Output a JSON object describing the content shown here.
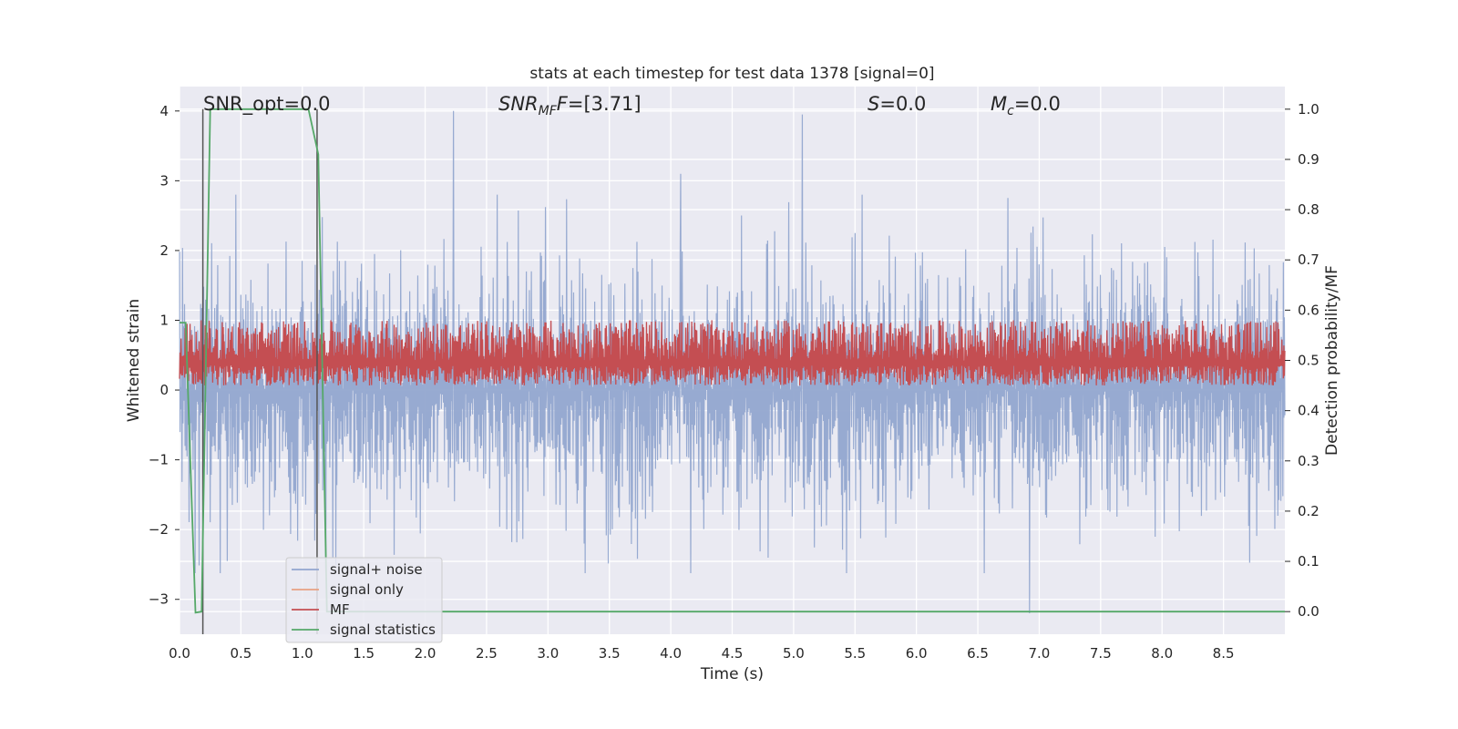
{
  "chart_data": {
    "type": "line",
    "title": "stats at each timestep for test data 1378 [signal=0]",
    "xlabel": "Time (s)",
    "ylabel": "Whitened strain",
    "y2label": "Detection probability/MF",
    "xlim": [
      0.0,
      9.0
    ],
    "ylim": [
      -3.5,
      4.35
    ],
    "y2lim": [
      -0.045,
      1.045
    ],
    "xticks": [
      "0.0",
      "0.5",
      "1.0",
      "1.5",
      "2.0",
      "2.5",
      "3.0",
      "3.5",
      "4.0",
      "4.5",
      "5.0",
      "5.5",
      "6.0",
      "6.5",
      "7.0",
      "7.5",
      "8.0",
      "8.5"
    ],
    "xtick_values": [
      0.0,
      0.5,
      1.0,
      1.5,
      2.0,
      2.5,
      3.0,
      3.5,
      4.0,
      4.5,
      5.0,
      5.5,
      6.0,
      6.5,
      7.0,
      7.5,
      8.0,
      8.5
    ],
    "yticks": [
      "−3",
      "−2",
      "−1",
      "0",
      "1",
      "2",
      "3",
      "4"
    ],
    "ytick_values": [
      -3,
      -2,
      -1,
      0,
      1,
      2,
      3,
      4
    ],
    "y2ticks": [
      "0.0",
      "0.1",
      "0.2",
      "0.3",
      "0.4",
      "0.5",
      "0.6",
      "0.7",
      "0.8",
      "0.9",
      "1.0"
    ],
    "y2tick_values": [
      0.0,
      0.1,
      0.2,
      0.3,
      0.4,
      0.5,
      0.6,
      0.7,
      0.8,
      0.9,
      1.0
    ],
    "grid": true,
    "legend_position": "lower-left",
    "annotations": {
      "snr_opt": "SNR_opt=0.0",
      "snr_mf_sym": "SNR",
      "snr_mf_sub": "MF",
      "snr_mf_val": "=[3.71]",
      "s_sym": "S",
      "s_val": "=0.0",
      "mc_sym": "M",
      "mc_sub": "c",
      "mc_val": "=0.0"
    },
    "vertical_lines_x": [
      0.19,
      1.12
    ],
    "series": [
      {
        "name": "signal+ noise",
        "color": "#92a6cf",
        "axis": "left",
        "kind": "noise",
        "n_samples": 2200,
        "envelope_upper": 1.75,
        "envelope_lower": -1.75,
        "peaks": [
          [
            2.23,
            4.0
          ],
          [
            5.07,
            3.95
          ],
          [
            4.08,
            3.1
          ],
          [
            6.92,
            -3.2
          ]
        ]
      },
      {
        "name": "signal only",
        "color": "#e8a083",
        "axis": "left",
        "values": []
      },
      {
        "name": "MF",
        "color": "#c44e52",
        "axis": "right",
        "kind": "noise-band",
        "n_samples": 2200,
        "baseline": 0.5,
        "range": [
          0.45,
          0.58
        ]
      },
      {
        "name": "signal statistics",
        "color": "#55a868",
        "axis": "right",
        "x": [
          0.0,
          0.05,
          0.13,
          0.18,
          0.25,
          0.3,
          1.05,
          1.13,
          1.2,
          1.3,
          9.0
        ],
        "values": [
          0.575,
          0.575,
          -0.002,
          0.0,
          1.0,
          1.0,
          1.0,
          0.91,
          0.0,
          0.0,
          0.0
        ]
      }
    ],
    "legend": [
      "signal+ noise",
      "signal only",
      "MF",
      "signal statistics"
    ],
    "colors": {
      "background": "#eaeaf2",
      "grid": "#ffffff",
      "text": "#262626",
      "vline": "#555555"
    }
  }
}
